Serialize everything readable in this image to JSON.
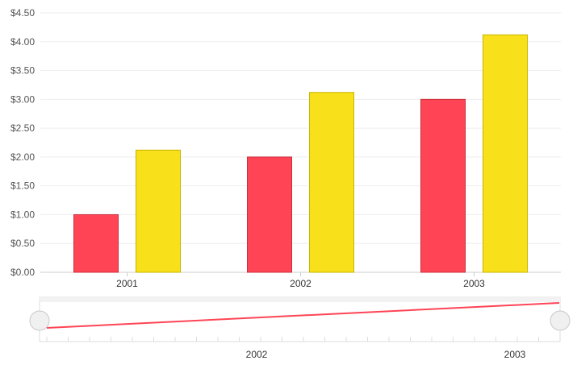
{
  "chart_data": {
    "type": "bar",
    "title": "",
    "xlabel": "",
    "ylabel": "",
    "categories": [
      "2001",
      "2002",
      "2003"
    ],
    "series": [
      {
        "color": "#ff4455",
        "values": [
          1.0,
          2.0,
          3.0
        ]
      },
      {
        "color": "#f8e01a",
        "values": [
          2.12,
          3.12,
          4.12
        ]
      }
    ],
    "ylim": [
      0,
      4.5
    ],
    "yticks": [
      "$0.00",
      "$0.50",
      "$1.00",
      "$1.50",
      "$2.00",
      "$2.50",
      "$3.00",
      "$3.50",
      "$4.00",
      "$4.50"
    ],
    "grid": true,
    "legend": "none"
  },
  "navigator": {
    "axis_labels": [
      "2002",
      "2003"
    ],
    "line_color": "#ff4455"
  }
}
